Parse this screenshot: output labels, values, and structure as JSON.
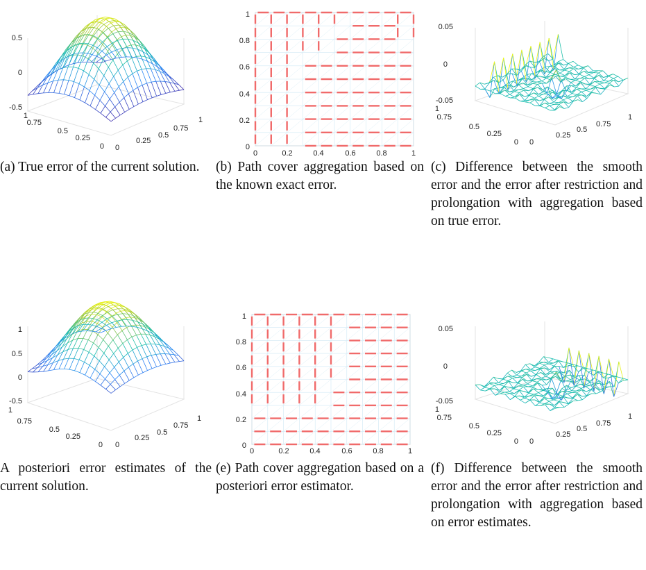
{
  "figures": [
    {
      "id": "a",
      "type": "surface",
      "zTicks": [
        "0.5",
        "0",
        "-0.5"
      ],
      "xTicks": [
        "0",
        "0.25",
        "0.5",
        "0.75",
        "1"
      ],
      "yTicks": [
        "1",
        "0.75",
        "0.5",
        "0.25",
        "0"
      ],
      "caption": "(a) True error of the current solution."
    },
    {
      "id": "b",
      "type": "aggregation",
      "yTicks": [
        "1",
        "0.8",
        "0.6",
        "0.4",
        "0.2",
        "0"
      ],
      "xTicks": [
        "0",
        "0.2",
        "0.4",
        "0.6",
        "0.8",
        "1"
      ],
      "caption": "(b) Path cover aggregation based on the known exact error."
    },
    {
      "id": "c",
      "type": "difference",
      "zTicks": [
        "0.05",
        "0",
        "-0.05"
      ],
      "xTicks": [
        "0",
        "0.25",
        "0.5",
        "0.75",
        "1"
      ],
      "yTicks": [
        "1",
        "0.75",
        "0.5",
        "0.25",
        "0"
      ],
      "caption": "(c) Difference between the smooth error and the error after restriction and prolongation with aggregation based on true error."
    },
    {
      "id": "d",
      "type": "surface",
      "zTicks": [
        "1",
        "0.5",
        "0",
        "-0.5"
      ],
      "xTicks": [
        "0",
        "0.25",
        "0.5",
        "0.75",
        "1"
      ],
      "yTicks": [
        "1",
        "0.75",
        "0.5",
        "0.25",
        "0"
      ],
      "caption": "A posteriori error estimates of the current solution."
    },
    {
      "id": "e",
      "type": "aggregation",
      "yTicks": [
        "1",
        "0.8",
        "0.6",
        "0.4",
        "0.2",
        "0"
      ],
      "xTicks": [
        "0",
        "0.2",
        "0.4",
        "0.6",
        "0.8",
        "1"
      ],
      "caption": "(e) Path cover aggregation based on a posteriori error estimator."
    },
    {
      "id": "f",
      "type": "difference",
      "zTicks": [
        "0.05",
        "0",
        "-0.05"
      ],
      "xTicks": [
        "0",
        "0.25",
        "0.5",
        "0.75",
        "1"
      ],
      "yTicks": [
        "1",
        "0.75",
        "0.5",
        "0.25",
        "0"
      ],
      "caption": "(f) Difference between the smooth error and the error after restriction and prolongation with aggregation based on error estimates."
    }
  ]
}
